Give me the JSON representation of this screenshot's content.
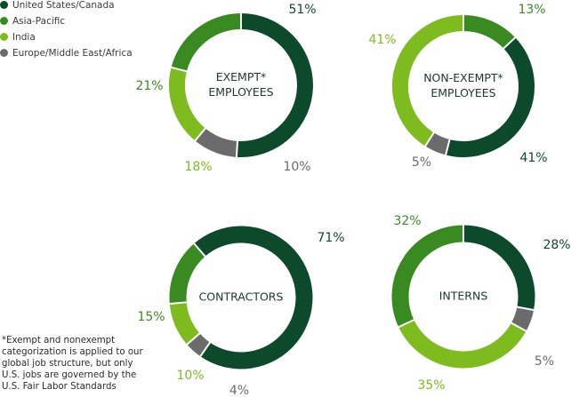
{
  "legend": [
    {
      "label": "United States/Canada",
      "color": "#0d4a2b"
    },
    {
      "label": "Asia-Pacific",
      "color": "#3a8a22"
    },
    {
      "label": "India",
      "color": "#7dbb1e"
    },
    {
      "label": "Europe/Middle East/Africa",
      "color": "#6b6b6b"
    }
  ],
  "chart_data": [
    {
      "type": "pie",
      "donut": true,
      "title_lines": [
        "EXEMPT*",
        "EMPLOYEES"
      ],
      "categories": [
        "United States/Canada",
        "Europe/Middle East/Africa",
        "India",
        "Asia-Pacific"
      ],
      "values": [
        51,
        10,
        18,
        21
      ],
      "value_labels": [
        "51%",
        "10%",
        "18%",
        "21%"
      ]
    },
    {
      "type": "pie",
      "donut": true,
      "title_lines": [
        "NON-EXEMPT*",
        "EMPLOYEES"
      ],
      "categories": [
        "Asia-Pacific",
        "United States/Canada",
        "Europe/Middle East/Africa",
        "India"
      ],
      "values": [
        13,
        41,
        5,
        41
      ],
      "value_labels": [
        "13%",
        "41%",
        "5%",
        "41%"
      ]
    },
    {
      "type": "pie",
      "donut": true,
      "title_lines": [
        "CONTRACTORS"
      ],
      "categories": [
        "United States/Canada",
        "Europe/Middle East/Africa",
        "India",
        "Asia-Pacific"
      ],
      "values": [
        71,
        4,
        10,
        15
      ],
      "value_labels": [
        "71%",
        "4%",
        "10%",
        "15%"
      ]
    },
    {
      "type": "pie",
      "donut": true,
      "title_lines": [
        "INTERNS"
      ],
      "categories": [
        "United States/Canada",
        "Europe/Middle East/Africa",
        "India",
        "Asia-Pacific"
      ],
      "values": [
        28,
        5,
        35,
        32
      ],
      "value_labels": [
        "28%",
        "5%",
        "35%",
        "32%"
      ]
    }
  ],
  "footnote": "*Exempt and nonexempt categorization is applied to our global job structure, but only U.S. jobs are governed by the U.S. Fair Labor Standards"
}
